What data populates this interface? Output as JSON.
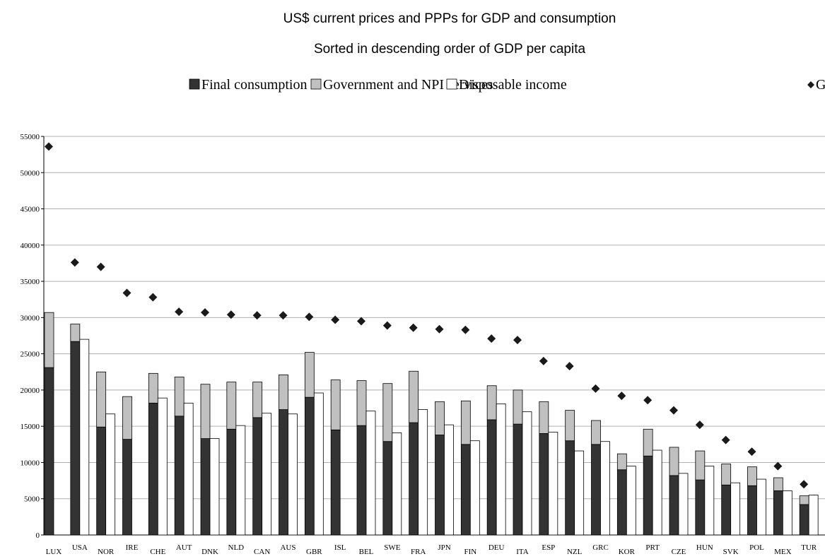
{
  "chart_data": {
    "type": "bar",
    "title": "US$ current prices and PPPs for GDP and consumption",
    "subtitle": "Sorted in descending order of GDP per capita",
    "categories": [
      "LUX",
      "USA",
      "NOR",
      "IRE",
      "CHE",
      "AUT",
      "DNK",
      "NLD",
      "CAN",
      "AUS",
      "GBR",
      "ISL",
      "BEL",
      "SWE",
      "FRA",
      "JPN",
      "FIN",
      "DEU",
      "ITA",
      "ESP",
      "NZL",
      "GRC",
      "KOR",
      "PRT",
      "CZE",
      "HUN",
      "SVK",
      "POL",
      "MEX",
      "TUR"
    ],
    "series": [
      {
        "name": "Final consumption",
        "color": "#333333",
        "style": "stacked",
        "values": [
          23100,
          26700,
          14900,
          13200,
          18200,
          16400,
          13300,
          14600,
          16200,
          17300,
          19000,
          14500,
          15100,
          12900,
          15500,
          13800,
          12500,
          15900,
          15300,
          14000,
          13000,
          12500,
          9000,
          10900,
          8200,
          7600,
          6900,
          6800,
          6100,
          4200
        ]
      },
      {
        "name": "Government and NPI services",
        "color": "#c0c0c0",
        "style": "stacked",
        "values": [
          7600,
          2400,
          7600,
          5900,
          4100,
          5400,
          7500,
          6500,
          4900,
          4800,
          6200,
          6900,
          6200,
          8000,
          7100,
          4600,
          6000,
          4700,
          4700,
          4400,
          4200,
          3300,
          2200,
          3700,
          3900,
          4000,
          2900,
          2600,
          1800,
          1200
        ]
      },
      {
        "name": "Disposable income",
        "color": "#ffffff",
        "style": "bar",
        "values": [
          null,
          27000,
          16700,
          null,
          18900,
          18200,
          13300,
          15100,
          16800,
          16700,
          19600,
          null,
          17100,
          14100,
          17300,
          15200,
          13000,
          18100,
          17000,
          14200,
          11600,
          12900,
          9500,
          11700,
          8500,
          9500,
          7200,
          7700,
          6100,
          5500
        ]
      },
      {
        "name": "GDP",
        "color": "#1a1a1a",
        "style": "diamond",
        "values": [
          53600,
          37600,
          37000,
          33400,
          32800,
          30800,
          30700,
          30400,
          30300,
          30300,
          30100,
          29700,
          29500,
          28900,
          28600,
          28400,
          28300,
          27100,
          26900,
          24000,
          23300,
          20200,
          19200,
          18600,
          17200,
          15200,
          13100,
          11500,
          9500,
          7000
        ]
      }
    ],
    "ylim": [
      0,
      55000
    ],
    "yticks": [
      0,
      5000,
      10000,
      15000,
      20000,
      25000,
      30000,
      35000,
      40000,
      45000,
      50000,
      55000
    ],
    "grid": true
  }
}
